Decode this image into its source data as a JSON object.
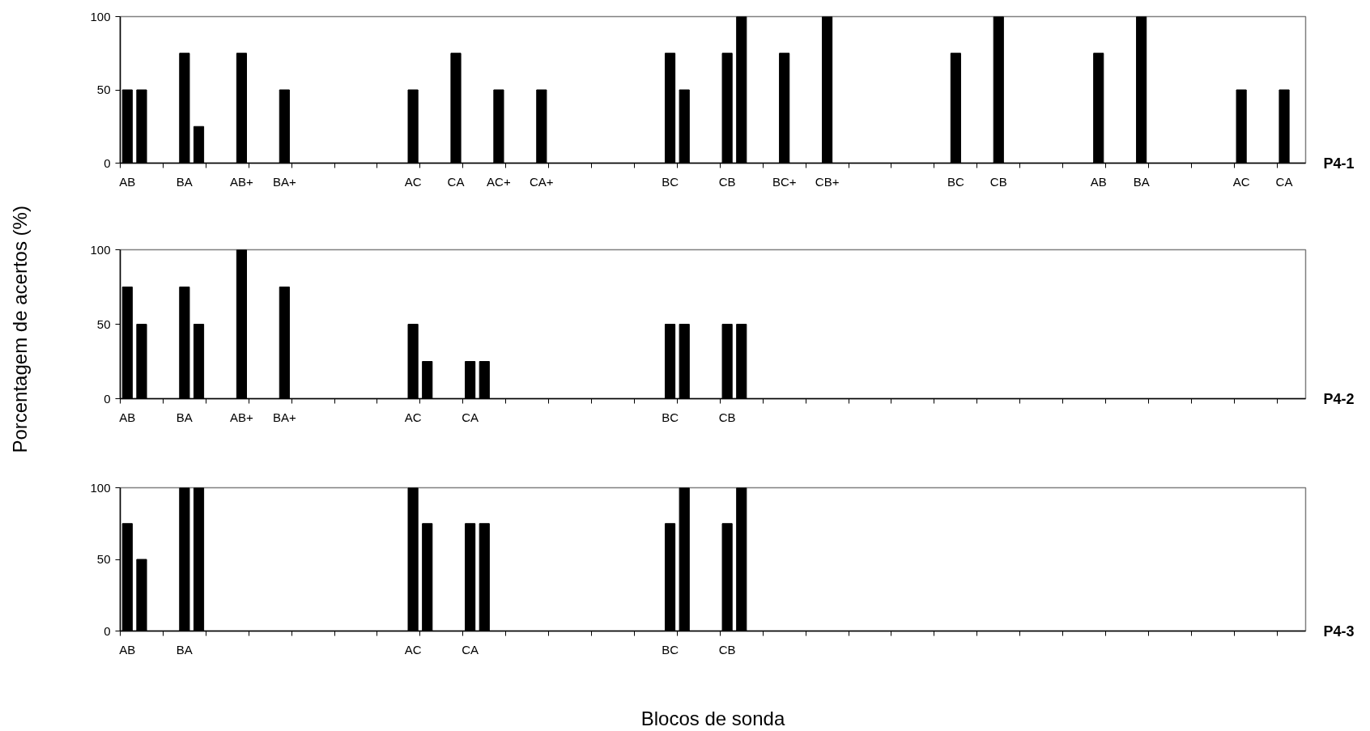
{
  "chart_data": [
    {
      "type": "bar",
      "annotations": [
        "P4-1"
      ],
      "color": "#000000",
      "categories": [
        "AB",
        null,
        null,
        null,
        "BA",
        null,
        null,
        null,
        "AB+",
        null,
        null,
        "BA+",
        null,
        null,
        null,
        null,
        null,
        null,
        null,
        null,
        "AC",
        null,
        null,
        "CA",
        null,
        null,
        "AC+",
        null,
        null,
        "CA+",
        null,
        null,
        null,
        null,
        null,
        null,
        null,
        null,
        "BC",
        null,
        null,
        null,
        "CB",
        null,
        null,
        null,
        "BC+",
        null,
        null,
        "CB+",
        null,
        null,
        null,
        null,
        null,
        null,
        null,
        null,
        "BC",
        null,
        null,
        "CB",
        null,
        null,
        null,
        null,
        null,
        null,
        "AB",
        null,
        null,
        "BA",
        null,
        null,
        null,
        null,
        null,
        null,
        "AC",
        null,
        null,
        "CA",
        null
      ],
      "values": [
        50,
        50,
        null,
        null,
        75,
        25,
        null,
        null,
        75,
        null,
        null,
        50,
        null,
        null,
        null,
        null,
        null,
        null,
        null,
        null,
        50,
        null,
        null,
        75,
        null,
        null,
        50,
        null,
        null,
        50,
        null,
        null,
        null,
        null,
        null,
        null,
        null,
        null,
        75,
        50,
        null,
        null,
        75,
        100,
        null,
        null,
        75,
        null,
        null,
        100,
        null,
        null,
        null,
        null,
        null,
        null,
        null,
        null,
        75,
        null,
        null,
        100,
        null,
        null,
        null,
        null,
        null,
        null,
        75,
        null,
        null,
        100,
        null,
        null,
        null,
        null,
        null,
        null,
        50,
        null,
        null,
        50,
        null
      ],
      "ylim": [
        0,
        100
      ],
      "yticks": [
        0,
        50,
        100
      ]
    },
    {
      "type": "bar",
      "annotations": [
        "P4-2"
      ],
      "color": "#000000",
      "ylabel": "Porcentagem de acertos (%)",
      "categories": [
        "AB",
        null,
        null,
        null,
        "BA",
        null,
        null,
        null,
        "AB+",
        null,
        null,
        "BA+",
        null,
        null,
        null,
        null,
        null,
        null,
        null,
        null,
        "AC",
        null,
        null,
        null,
        "CA",
        null,
        null,
        null,
        null,
        null,
        null,
        null,
        null,
        null,
        null,
        null,
        null,
        null,
        "BC",
        null,
        null,
        null,
        "CB",
        null,
        null,
        null,
        null,
        null,
        null,
        null,
        null,
        null,
        null,
        null,
        null,
        null,
        null,
        null,
        null,
        null,
        null,
        null,
        null,
        null,
        null,
        null,
        null,
        null,
        null,
        null,
        null,
        null,
        null,
        null,
        null,
        null,
        null,
        null,
        null,
        null,
        null,
        null,
        null
      ],
      "values": [
        75,
        50,
        null,
        null,
        75,
        50,
        null,
        null,
        100,
        null,
        null,
        75,
        null,
        null,
        null,
        null,
        null,
        null,
        null,
        null,
        50,
        25,
        null,
        null,
        25,
        25,
        null,
        null,
        null,
        null,
        null,
        null,
        null,
        null,
        null,
        null,
        null,
        null,
        50,
        50,
        null,
        null,
        50,
        50,
        null,
        null,
        null,
        null,
        null,
        null,
        null,
        null,
        null,
        null,
        null,
        null,
        null,
        null,
        null,
        null,
        null,
        null,
        null,
        null,
        null,
        null,
        null,
        null,
        null,
        null,
        null,
        null,
        null,
        null,
        null,
        null,
        null,
        null,
        null,
        null,
        null,
        null,
        null
      ],
      "ylim": [
        0,
        100
      ],
      "yticks": [
        0,
        50,
        100
      ]
    },
    {
      "type": "bar",
      "annotations": [
        "P4-3"
      ],
      "color": "#000000",
      "xlabel": "Blocos de sonda",
      "categories": [
        "AB",
        null,
        null,
        null,
        "BA",
        null,
        null,
        null,
        null,
        null,
        null,
        null,
        null,
        null,
        null,
        null,
        null,
        null,
        null,
        null,
        "AC",
        null,
        null,
        null,
        "CA",
        null,
        null,
        null,
        null,
        null,
        null,
        null,
        null,
        null,
        null,
        null,
        null,
        null,
        "BC",
        null,
        null,
        null,
        "CB",
        null,
        null,
        null,
        null,
        null,
        null,
        null,
        null,
        null,
        null,
        null,
        null,
        null,
        null,
        null,
        null,
        null,
        null,
        null,
        null,
        null,
        null,
        null,
        null,
        null,
        null,
        null,
        null,
        null,
        null,
        null,
        null,
        null,
        null,
        null,
        null,
        null,
        null,
        null,
        null
      ],
      "values": [
        75,
        50,
        null,
        null,
        100,
        100,
        null,
        null,
        null,
        null,
        null,
        null,
        null,
        null,
        null,
        null,
        null,
        null,
        null,
        null,
        100,
        75,
        null,
        null,
        75,
        75,
        null,
        null,
        null,
        null,
        null,
        null,
        null,
        null,
        null,
        null,
        null,
        null,
        75,
        100,
        null,
        null,
        75,
        100,
        null,
        null,
        null,
        null,
        null,
        null,
        null,
        null,
        null,
        null,
        null,
        null,
        null,
        null,
        null,
        null,
        null,
        null,
        null,
        null,
        null,
        null,
        null,
        null,
        null,
        null,
        null,
        null,
        null,
        null,
        null,
        null,
        null,
        null,
        null,
        null,
        null,
        null,
        null
      ],
      "ylim": [
        0,
        100
      ],
      "yticks": [
        0,
        50,
        100
      ]
    }
  ]
}
